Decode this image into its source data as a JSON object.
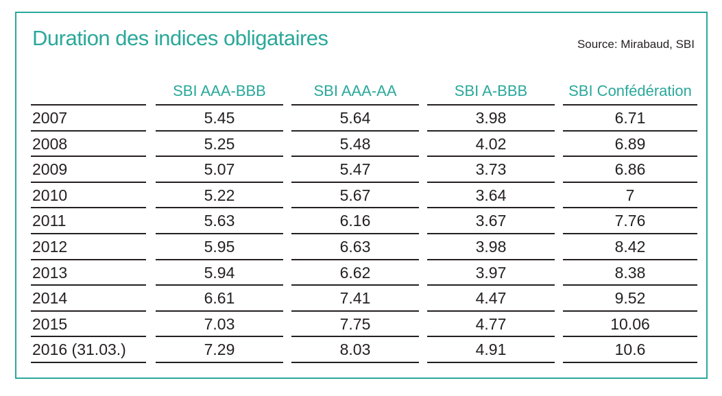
{
  "title": "Duration des indices obligataires",
  "source": "Source: Mirabaud, SBI",
  "colors": {
    "accent": "#2aa89a",
    "text": "#231f20",
    "rules": "#231f20"
  },
  "chart_data": {
    "type": "table",
    "title": "Duration des indices obligataires",
    "columns": [
      "SBI AAA-BBB",
      "SBI AAA-AA",
      "SBI A-BBB",
      "SBI Confédération"
    ],
    "rows": [
      {
        "label": "2007",
        "values": [
          "5.45",
          "5.64",
          "3.98",
          "6.71"
        ]
      },
      {
        "label": "2008",
        "values": [
          "5.25",
          "5.48",
          "4.02",
          "6.89"
        ]
      },
      {
        "label": "2009",
        "values": [
          "5.07",
          "5.47",
          "3.73",
          "6.86"
        ]
      },
      {
        "label": "2010",
        "values": [
          "5.22",
          "5.67",
          "3.64",
          "7"
        ]
      },
      {
        "label": "2011",
        "values": [
          "5.63",
          "6.16",
          "3.67",
          "7.76"
        ]
      },
      {
        "label": "2012",
        "values": [
          "5.95",
          "6.63",
          "3.98",
          "8.42"
        ]
      },
      {
        "label": "2013",
        "values": [
          "5.94",
          "6.62",
          "3.97",
          "8.38"
        ]
      },
      {
        "label": "2014",
        "values": [
          "6.61",
          "7.41",
          "4.47",
          "9.52"
        ]
      },
      {
        "label": "2015",
        "values": [
          "7.03",
          "7.75",
          "4.77",
          "10.06"
        ]
      },
      {
        "label": "2016 (31.03.)",
        "values": [
          "7.29",
          "8.03",
          "4.91",
          "10.6"
        ]
      }
    ]
  }
}
